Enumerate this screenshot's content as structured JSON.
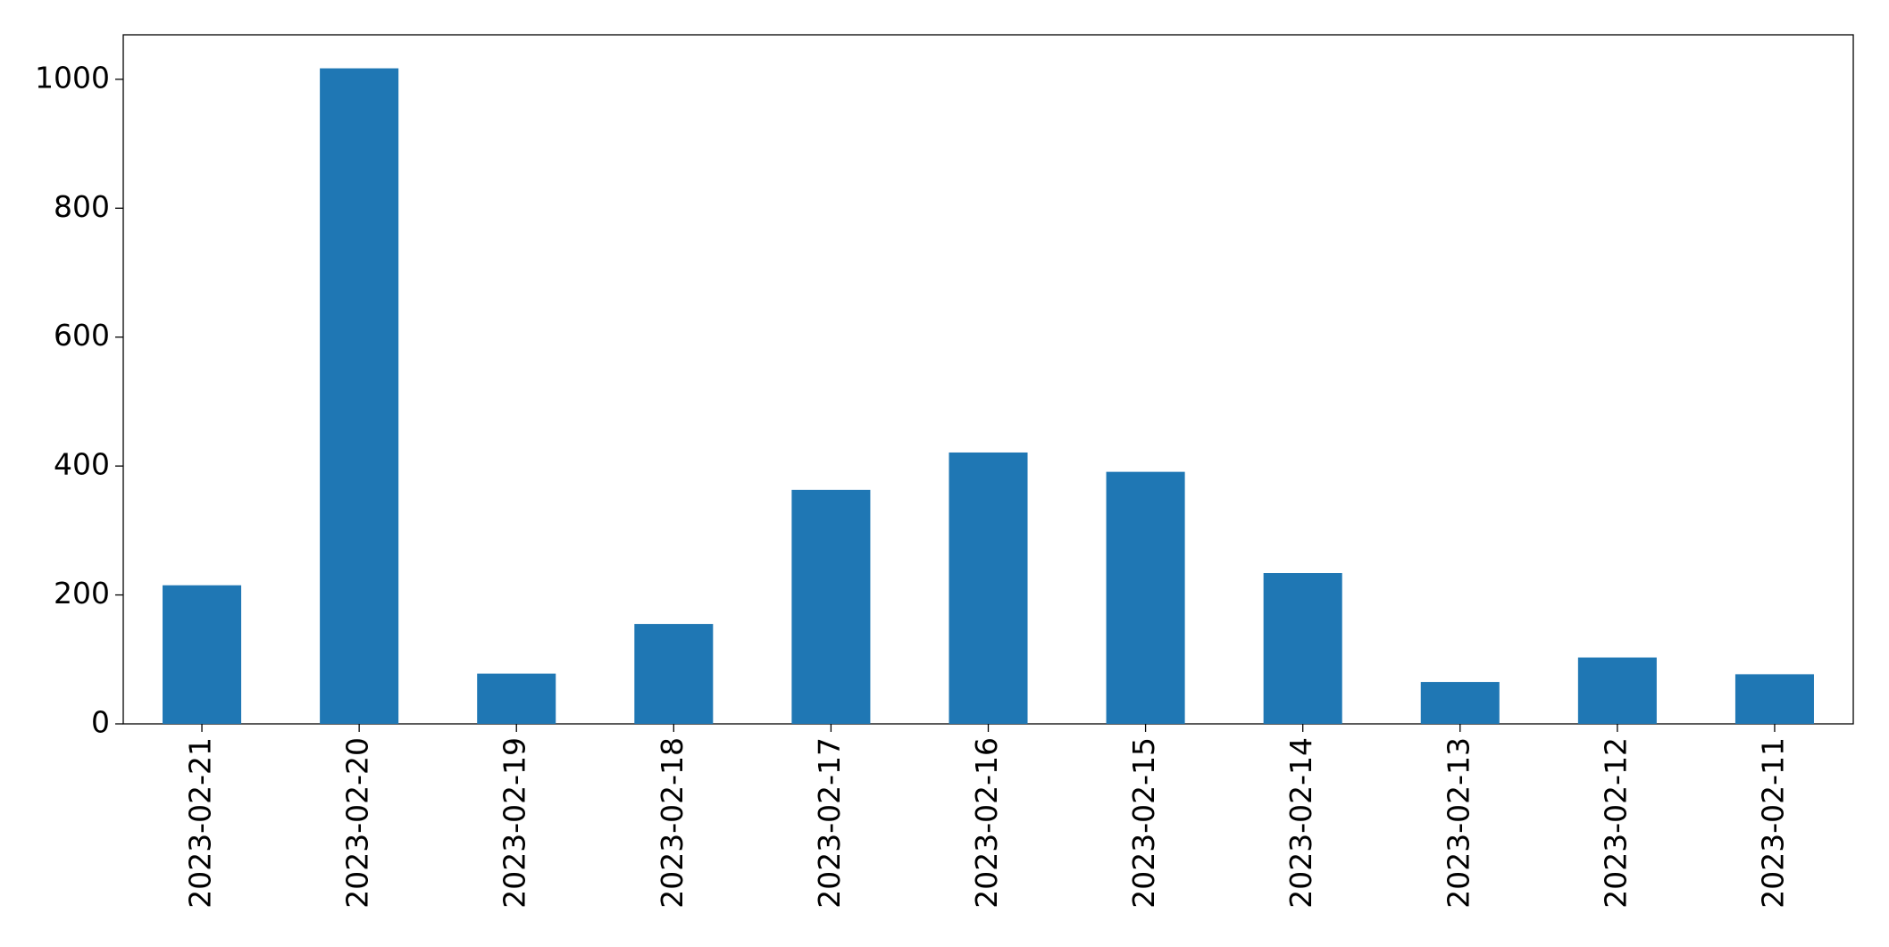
{
  "chart_data": {
    "type": "bar",
    "categories": [
      "2023-02-21",
      "2023-02-20",
      "2023-02-19",
      "2023-02-18",
      "2023-02-17",
      "2023-02-16",
      "2023-02-15",
      "2023-02-14",
      "2023-02-13",
      "2023-02-12",
      "2023-02-11"
    ],
    "values": [
      215,
      1017,
      78,
      155,
      363,
      421,
      391,
      234,
      65,
      103,
      77
    ],
    "color": "#1f77b4",
    "ylim": [
      0,
      1069
    ],
    "yticks": [
      0,
      200,
      400,
      600,
      800,
      1000
    ],
    "grid": false
  }
}
